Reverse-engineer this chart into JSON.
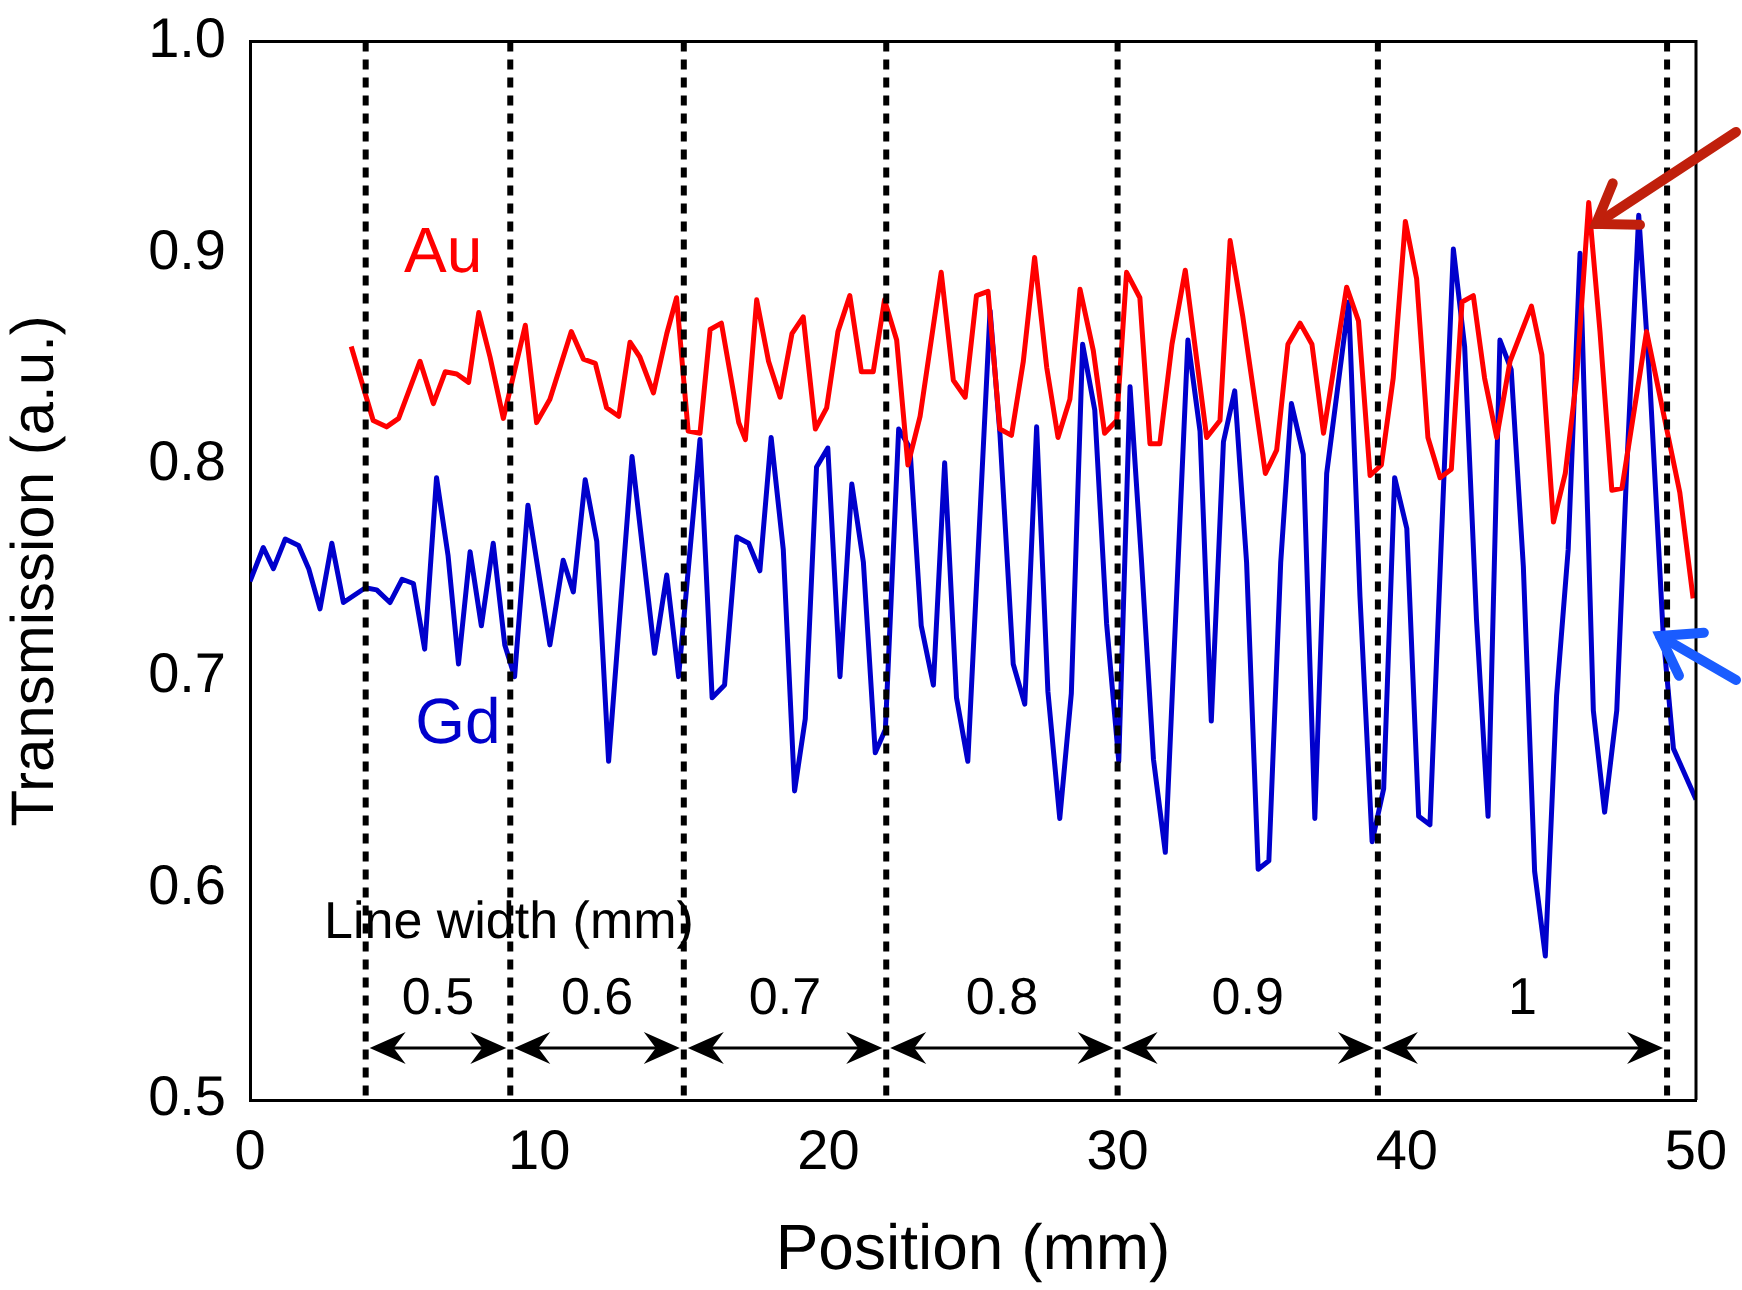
{
  "chart_data": {
    "type": "line",
    "xlabel": "Position (mm)",
    "ylabel": "Transmission (a.u.)",
    "xlim": [
      0,
      50
    ],
    "xticks": [
      0,
      10,
      20,
      30,
      40,
      50
    ],
    "ylim": [
      0.5,
      1
    ],
    "yticks": [
      0.5,
      0.6,
      0.7,
      0.8,
      0.9,
      {
        "value": 1,
        "label": "1.0"
      }
    ],
    "grid": false,
    "legend": false,
    "line_style": "solid",
    "marker": "none",
    "series": [
      {
        "name": "Au",
        "color": "#ff0000",
        "x": [
          3.5,
          4.26,
          4.72,
          5.14,
          5.88,
          6.34,
          6.75,
          7.15,
          7.56,
          7.91,
          8.3,
          8.76,
          9.52,
          9.91,
          10.37,
          11.11,
          11.53,
          11.94,
          12.33,
          12.75,
          13.14,
          13.48,
          13.95,
          14.41,
          14.75,
          15.15,
          15.56,
          15.91,
          16.3,
          16.9,
          17.13,
          17.52,
          17.93,
          18.33,
          18.74,
          19.13,
          19.55,
          19.94,
          20.33,
          20.74,
          21.14,
          21.55,
          21.94,
          22.36,
          22.75,
          23.17,
          23.9,
          24.32,
          24.73,
          25.12,
          25.52,
          25.93,
          26.33,
          26.74,
          27.13,
          27.55,
          27.94,
          28.35,
          28.7,
          29.16,
          29.55,
          29.97,
          30.31,
          30.77,
          31.12,
          31.46,
          31.88,
          32.34,
          33.08,
          33.54,
          33.89,
          34.33,
          35.11,
          35.5,
          35.89,
          36.31,
          36.72,
          37.12,
          37.92,
          38.33,
          38.73,
          39.12,
          39.53,
          39.95,
          40.34,
          40.73,
          41.15,
          41.54,
          41.91,
          42.3,
          42.69,
          43.11,
          43.57,
          44.31,
          44.67,
          45.07,
          45.48,
          45.87,
          46.29,
          46.68,
          47.09,
          47.44,
          48.29,
          49.44,
          49.9
        ],
        "values": [
          0.856,
          0.821,
          0.818,
          0.822,
          0.849,
          0.829,
          0.844,
          0.843,
          0.839,
          0.872,
          0.851,
          0.822,
          0.866,
          0.82,
          0.831,
          0.863,
          0.85,
          0.848,
          0.827,
          0.823,
          0.858,
          0.851,
          0.834,
          0.862,
          0.879,
          0.816,
          0.815,
          0.864,
          0.867,
          0.82,
          0.812,
          0.878,
          0.849,
          0.832,
          0.862,
          0.87,
          0.817,
          0.827,
          0.863,
          0.88,
          0.844,
          0.844,
          0.878,
          0.859,
          0.8,
          0.823,
          0.891,
          0.84,
          0.832,
          0.88,
          0.882,
          0.817,
          0.814,
          0.849,
          0.898,
          0.846,
          0.813,
          0.831,
          0.883,
          0.854,
          0.815,
          0.821,
          0.891,
          0.879,
          0.81,
          0.81,
          0.857,
          0.892,
          0.813,
          0.821,
          0.906,
          0.87,
          0.796,
          0.807,
          0.857,
          0.867,
          0.857,
          0.815,
          0.884,
          0.868,
          0.795,
          0.8,
          0.841,
          0.915,
          0.888,
          0.813,
          0.794,
          0.798,
          0.877,
          0.88,
          0.841,
          0.813,
          0.849,
          0.875,
          0.852,
          0.773,
          0.796,
          0.841,
          0.924,
          0.863,
          0.788,
          0.789,
          0.863,
          0.787,
          0.737
        ]
      },
      {
        "name": "Gd",
        "color": "#0000cc",
        "x": [
          0,
          0.46,
          0.81,
          1.22,
          1.68,
          2.03,
          2.42,
          2.83,
          3.23,
          3.99,
          4.38,
          4.84,
          5.26,
          5.65,
          6.04,
          6.45,
          6.85,
          7.21,
          7.61,
          8.0,
          8.41,
          8.81,
          9.15,
          9.61,
          10.37,
          10.83,
          11.18,
          11.59,
          11.99,
          12.4,
          13.21,
          13.99,
          14.41,
          14.82,
          15.56,
          15.98,
          16.41,
          16.83,
          17.24,
          17.63,
          18.02,
          18.44,
          18.83,
          19.2,
          19.59,
          19.98,
          20.4,
          20.81,
          21.21,
          21.62,
          21.97,
          22.43,
          22.82,
          23.21,
          23.63,
          24.02,
          24.43,
          24.82,
          25.59,
          25.93,
          26.39,
          26.79,
          27.2,
          27.59,
          28.0,
          28.4,
          28.79,
          29.21,
          29.62,
          30.04,
          30.43,
          30.82,
          31.24,
          31.65,
          32.43,
          32.85,
          33.24,
          33.66,
          34.05,
          34.46,
          34.86,
          35.23,
          35.64,
          36.01,
          36.42,
          36.82,
          37.23,
          37.99,
          38.38,
          38.8,
          39.2,
          39.58,
          40.0,
          40.41,
          40.8,
          41.19,
          41.61,
          42.0,
          42.41,
          42.81,
          43.22,
          43.61,
          44.03,
          44.42,
          44.79,
          45.18,
          45.58,
          45.99,
          46.45,
          46.84,
          47.26,
          47.6,
          48.02,
          48.41,
          48.87,
          49.22,
          50
        ],
        "values": [
          0.745,
          0.761,
          0.751,
          0.765,
          0.762,
          0.751,
          0.732,
          0.763,
          0.735,
          0.742,
          0.741,
          0.735,
          0.746,
          0.744,
          0.713,
          0.794,
          0.757,
          0.706,
          0.759,
          0.724,
          0.763,
          0.715,
          0.7,
          0.781,
          0.715,
          0.755,
          0.74,
          0.793,
          0.764,
          0.66,
          0.804,
          0.711,
          0.748,
          0.7,
          0.812,
          0.69,
          0.696,
          0.766,
          0.763,
          0.75,
          0.813,
          0.76,
          0.646,
          0.68,
          0.799,
          0.808,
          0.7,
          0.791,
          0.754,
          0.664,
          0.675,
          0.817,
          0.808,
          0.724,
          0.696,
          0.801,
          0.69,
          0.66,
          0.873,
          0.815,
          0.706,
          0.687,
          0.818,
          0.693,
          0.633,
          0.692,
          0.857,
          0.826,
          0.725,
          0.66,
          0.837,
          0.756,
          0.661,
          0.617,
          0.859,
          0.816,
          0.679,
          0.811,
          0.835,
          0.754,
          0.609,
          0.613,
          0.754,
          0.829,
          0.805,
          0.633,
          0.796,
          0.877,
          0.738,
          0.622,
          0.647,
          0.794,
          0.77,
          0.634,
          0.63,
          0.763,
          0.902,
          0.856,
          0.727,
          0.634,
          0.859,
          0.845,
          0.752,
          0.608,
          0.568,
          0.691,
          0.76,
          0.9,
          0.684,
          0.636,
          0.684,
          0.797,
          0.918,
          0.838,
          0.719,
          0.666,
          0.642
        ]
      }
    ],
    "ref_lines": [
      {
        "axis": "x",
        "value": 4,
        "color": "#000000",
        "line_style": "dashed"
      },
      {
        "axis": "x",
        "value": 9,
        "color": "#000000",
        "line_style": "dashed"
      },
      {
        "axis": "x",
        "value": 15,
        "color": "#000000",
        "line_style": "dashed"
      },
      {
        "axis": "x",
        "value": 22,
        "color": "#000000",
        "line_style": "dashed"
      },
      {
        "axis": "x",
        "value": 30,
        "color": "#000000",
        "line_style": "dashed"
      },
      {
        "axis": "x",
        "value": 39,
        "color": "#000000",
        "line_style": "dashed"
      },
      {
        "axis": "x",
        "value": 49,
        "color": "#000000",
        "line_style": "dashed"
      }
    ],
    "annotations": [
      "Line width (mm)",
      "0.5",
      "0.6",
      "0.7",
      "0.8",
      "0.9",
      "1"
    ]
  }
}
